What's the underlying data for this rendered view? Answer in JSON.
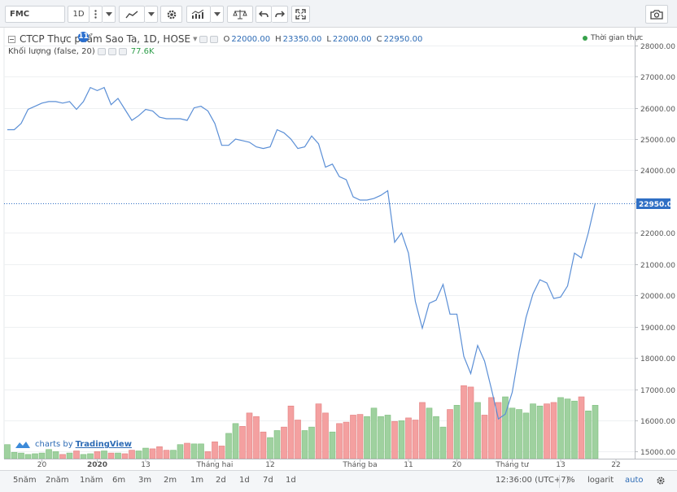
{
  "toolbar": {
    "symbol": "FMC",
    "interval": "1D",
    "icons": [
      "menu-more-icon",
      "caret-down-icon",
      "line-style-icon",
      "gear-icon",
      "indicators-icon",
      "compare-scale-icon",
      "undo-icon",
      "redo-icon",
      "fullscreen-icon",
      "camera-icon"
    ]
  },
  "legend": {
    "name": "CTCP Thực phẩm Sao Ta, 1D, HOSE",
    "o_key": "O",
    "o_val": "22000.00",
    "h_key": "H",
    "h_val": "23350.00",
    "l_key": "L",
    "l_val": "22000.00",
    "c_key": "C",
    "c_val": "22950.00",
    "volume_label": "Khối lượng (false, 20)",
    "volume_value": "77.6K",
    "info_badge": "11",
    "realtime": "Thời gian thực"
  },
  "tv_badge": {
    "by": "charts by",
    "link": "TradingView"
  },
  "bottom": {
    "ranges": [
      "5năm",
      "2năm",
      "1năm",
      "6m",
      "3m",
      "2m",
      "1m",
      "2d",
      "1d",
      "7d",
      "1d"
    ],
    "clock": "12:36:00 (UTC+7)",
    "percent": "%",
    "log": "logarit",
    "auto": "auto"
  },
  "colors": {
    "line": "#5b8fd6",
    "last_price_bg": "#2f6fc4",
    "volume_up": "#9fd19f",
    "volume_down": "#f4a0a0"
  },
  "chart_data": {
    "type": "line",
    "ylim": [
      14700,
      28200
    ],
    "y_ticks": [
      15000,
      16000,
      17000,
      18000,
      19000,
      20000,
      21000,
      22000,
      23000,
      24000,
      25000,
      26000,
      27000,
      28000
    ],
    "y_tick_labels": [
      "15000.00",
      "16000.00",
      "17000.00",
      "18000.00",
      "19000.00",
      "20000.00",
      "21000.00",
      "22000.00",
      "22950.00",
      "24000.00",
      "25000.00",
      "26000.00",
      "27000.00",
      "28000.00"
    ],
    "x_labels": [
      "20",
      "2020",
      "13",
      "Tháng hai",
      "12",
      "Tháng ba",
      "11",
      "20",
      "Tháng tư",
      "13",
      "22"
    ],
    "last_price": 22950,
    "last_price_label": "22950.00",
    "series": [
      {
        "values": [
          25300,
          25300,
          25500,
          25950,
          26050,
          26150,
          26200,
          26200,
          26150,
          26200,
          25950,
          26200,
          26650,
          26550,
          26650,
          26100,
          26300,
          25950,
          25600,
          25750,
          25950,
          25900,
          25700,
          25650,
          25650,
          25650,
          25600,
          26000,
          26050,
          25900,
          25500,
          24800,
          24800,
          25000,
          24950,
          24900,
          24750,
          24700,
          24750,
          25300,
          25200,
          25000,
          24700,
          24750,
          25100,
          24850,
          24100,
          24200,
          23800,
          23700,
          23150,
          23050,
          23050,
          23100,
          23200,
          23350,
          21700,
          22000,
          21350,
          19800,
          18950,
          19750,
          19850,
          20350,
          19400,
          19400,
          18050,
          17500,
          18400,
          17900,
          17000,
          16050,
          16200,
          16900,
          18200,
          19300,
          20050,
          20500,
          20400,
          19900,
          19950,
          20300,
          21350,
          21200,
          22000,
          22950
        ]
      },
      {
        "name": "volume",
        "values": [
          200,
          90,
          80,
          60,
          70,
          80,
          130,
          100,
          60,
          80,
          110,
          60,
          70,
          100,
          110,
          80,
          80,
          70,
          120,
          110,
          150,
          140,
          170,
          120,
          120,
          200,
          220,
          210,
          210,
          100,
          240,
          180,
          360,
          500,
          460,
          650,
          600,
          380,
          300,
          400,
          450,
          750,
          550,
          400,
          450,
          780,
          650,
          380,
          500,
          520,
          620,
          630,
          600,
          720,
          600,
          620,
          530,
          540,
          580,
          550,
          800,
          720,
          600,
          450,
          700,
          760,
          1040,
          1020,
          800,
          620,
          870,
          800,
          880,
          720,
          700,
          650,
          780,
          750,
          780,
          800,
          870,
          850,
          820,
          880,
          680,
          760
        ]
      }
    ]
  }
}
